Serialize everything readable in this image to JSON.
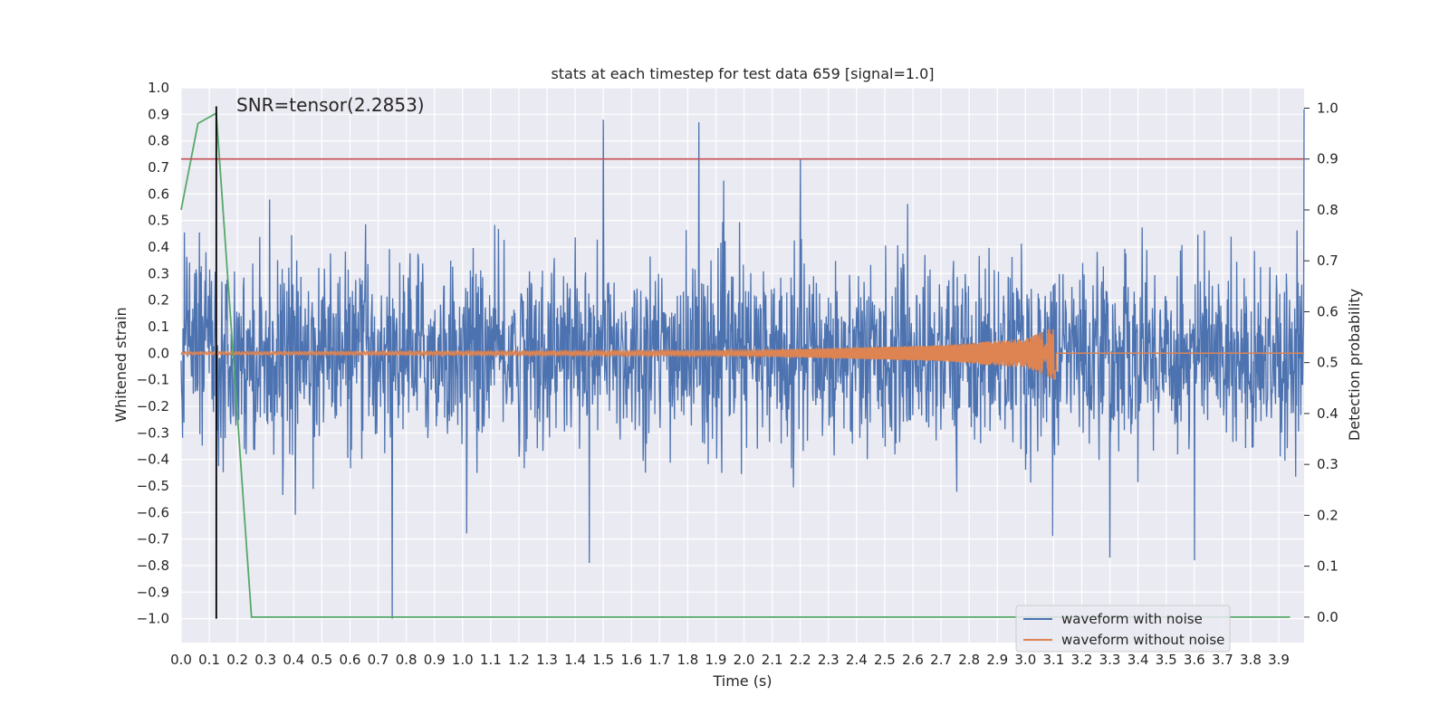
{
  "chart_data": {
    "type": "line",
    "title": "stats at each timestep for test data 659 [signal=1.0]",
    "xlabel": "Time (s)",
    "ylabel": "Whitened strain",
    "y2label": "Detection probability",
    "annotation": "SNR=tensor(2.2853)",
    "xlim": [
      0.0,
      3.99
    ],
    "ylim": [
      -1.09,
      1.0
    ],
    "y2lim": [
      -0.05,
      1.04
    ],
    "x_ticks": [
      "0.0",
      "0.1",
      "0.2",
      "0.3",
      "0.4",
      "0.5",
      "0.6",
      "0.7",
      "0.8",
      "0.9",
      "1.0",
      "1.1",
      "1.2",
      "1.3",
      "1.4",
      "1.5",
      "1.6",
      "1.7",
      "1.8",
      "1.9",
      "2.0",
      "2.1",
      "2.2",
      "2.3",
      "2.4",
      "2.5",
      "2.6",
      "2.7",
      "2.8",
      "2.9",
      "3.0",
      "3.1",
      "3.2",
      "3.3",
      "3.4",
      "3.5",
      "3.6",
      "3.7",
      "3.8",
      "3.9"
    ],
    "y_ticks": [
      "1.0",
      "0.9",
      "0.8",
      "0.7",
      "0.6",
      "0.5",
      "0.4",
      "0.3",
      "0.2",
      "0.1",
      "0.0",
      "−0.1",
      "−0.2",
      "−0.3",
      "−0.4",
      "−0.5",
      "−0.6",
      "−0.7",
      "−0.8",
      "−0.9",
      "−1.0"
    ],
    "y2_ticks": [
      "1.0",
      "0.9",
      "0.8",
      "0.7",
      "0.6",
      "0.5",
      "0.4",
      "0.3",
      "0.2",
      "0.1",
      "0.0"
    ],
    "legend": [
      "waveform with noise",
      "waveform without noise"
    ],
    "legend_position": "bottom-right",
    "series": [
      {
        "name": "waveform with noise",
        "color": "#4c72b0",
        "axis": "left",
        "style": "dense noise, amplitude mostly within ±0.45 with spikes",
        "peaks": [
          {
            "x": 0.75,
            "y": -1.0
          },
          {
            "x": 1.5,
            "y": 0.88
          },
          {
            "x": 1.84,
            "y": 0.87
          },
          {
            "x": 2.2,
            "y": 0.73
          },
          {
            "x": 3.99,
            "y": 0.92
          },
          {
            "x": 1.45,
            "y": -0.79
          },
          {
            "x": 3.3,
            "y": -0.77
          },
          {
            "x": 3.6,
            "y": -0.78
          }
        ]
      },
      {
        "name": "waveform without noise",
        "color": "#dd8452",
        "axis": "left",
        "style": "chirp growing in frequency and amplitude",
        "chirp_amplitude": [
          {
            "x": 0.0,
            "y": 0.005
          },
          {
            "x": 2.0,
            "y": 0.01
          },
          {
            "x": 2.7,
            "y": 0.03
          },
          {
            "x": 3.0,
            "y": 0.055
          },
          {
            "x": 3.1,
            "y": 0.1
          }
        ],
        "merger_time": 3.11
      },
      {
        "name": "detection probability",
        "color": "#55a868",
        "axis": "right",
        "x": [
          0.0,
          0.06,
          0.125,
          0.25,
          3.94
        ],
        "y": [
          0.8,
          0.97,
          0.99,
          0.0,
          0.0
        ]
      }
    ],
    "threshold": {
      "axis": "right",
      "y": 0.9,
      "color": "#c44e52"
    },
    "marker_line": {
      "x": 0.125,
      "y_from": -1.0,
      "y_to": 0.93,
      "color": "#000000"
    }
  }
}
